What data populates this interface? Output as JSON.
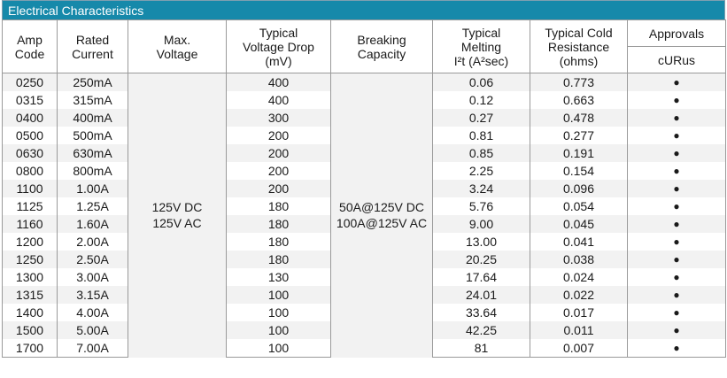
{
  "title": "Electrical Characteristics",
  "headers": {
    "amp_code": [
      "Amp",
      "Code"
    ],
    "rated_current": [
      "Rated",
      "Current"
    ],
    "max_voltage": [
      "Max.",
      "Voltage"
    ],
    "voltage_drop": [
      "Typical",
      "Voltage Drop",
      "(mV)"
    ],
    "breaking_capacity": [
      "Breaking",
      "Capacity"
    ],
    "melting": [
      "Typical",
      "Melting",
      "I²t (A²sec)"
    ],
    "cold_resistance": [
      "Typical Cold",
      "Resistance",
      "(ohms)"
    ],
    "approvals": "Approvals",
    "curus": "cURus"
  },
  "max_voltage": [
    "125V DC",
    "125V AC"
  ],
  "breaking_capacity": [
    "50A@125V DC",
    "100A@125V AC"
  ],
  "rows": [
    {
      "code": "0250",
      "current": "250mA",
      "drop": "400",
      "melting": "0.06",
      "resistance": "0.773",
      "curus": "●"
    },
    {
      "code": "0315",
      "current": "315mA",
      "drop": "400",
      "melting": "0.12",
      "resistance": "0.663",
      "curus": "●"
    },
    {
      "code": "0400",
      "current": "400mA",
      "drop": "300",
      "melting": "0.27",
      "resistance": "0.478",
      "curus": "●"
    },
    {
      "code": "0500",
      "current": "500mA",
      "drop": "200",
      "melting": "0.81",
      "resistance": "0.277",
      "curus": "●"
    },
    {
      "code": "0630",
      "current": "630mA",
      "drop": "200",
      "melting": "0.85",
      "resistance": "0.191",
      "curus": "●"
    },
    {
      "code": "0800",
      "current": "800mA",
      "drop": "200",
      "melting": "2.25",
      "resistance": "0.154",
      "curus": "●"
    },
    {
      "code": "1100",
      "current": "1.00A",
      "drop": "200",
      "melting": "3.24",
      "resistance": "0.096",
      "curus": "●"
    },
    {
      "code": "1125",
      "current": "1.25A",
      "drop": "180",
      "melting": "5.76",
      "resistance": "0.054",
      "curus": "●"
    },
    {
      "code": "1160",
      "current": "1.60A",
      "drop": "180",
      "melting": "9.00",
      "resistance": "0.045",
      "curus": "●"
    },
    {
      "code": "1200",
      "current": "2.00A",
      "drop": "180",
      "melting": "13.00",
      "resistance": "0.041",
      "curus": "●"
    },
    {
      "code": "1250",
      "current": "2.50A",
      "drop": "180",
      "melting": "20.25",
      "resistance": "0.038",
      "curus": "●"
    },
    {
      "code": "1300",
      "current": "3.00A",
      "drop": "130",
      "melting": "17.64",
      "resistance": "0.024",
      "curus": "●"
    },
    {
      "code": "1315",
      "current": "3.15A",
      "drop": "100",
      "melting": "24.01",
      "resistance": "0.022",
      "curus": "●"
    },
    {
      "code": "1400",
      "current": "4.00A",
      "drop": "100",
      "melting": "33.64",
      "resistance": "0.017",
      "curus": "●"
    },
    {
      "code": "1500",
      "current": "5.00A",
      "drop": "100",
      "melting": "42.25",
      "resistance": "0.011",
      "curus": "●"
    },
    {
      "code": "1700",
      "current": "7.00A",
      "drop": "100",
      "melting": "81",
      "resistance": "0.007",
      "curus": "●"
    }
  ]
}
